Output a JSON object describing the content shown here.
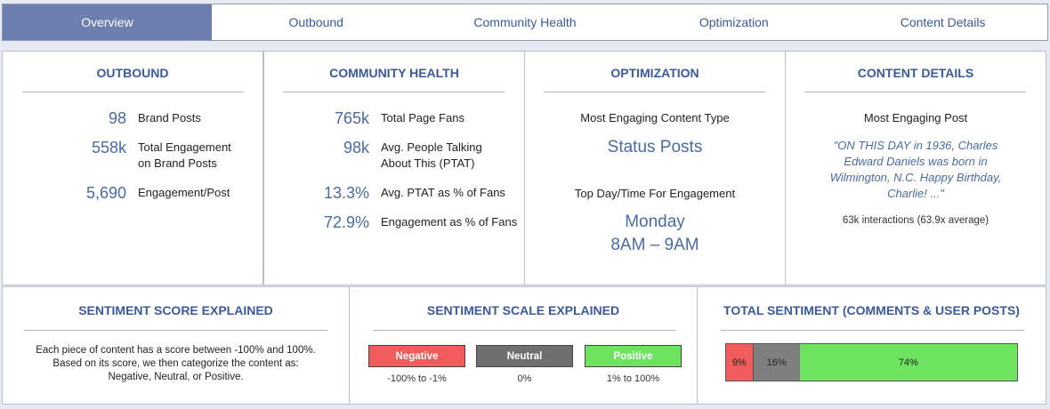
{
  "tabs": [
    "Overview",
    "Outbound",
    "Community Health",
    "Optimization",
    "Content Details"
  ],
  "active_tab": 0,
  "outbound": {
    "heading": "OUTBOUND",
    "stats": [
      {
        "value": "98",
        "label": "Brand Posts"
      },
      {
        "value": "558k",
        "label": "Total Engagement\non Brand Posts"
      },
      {
        "value": "5,690",
        "label": "Engagement/Post"
      }
    ]
  },
  "community": {
    "heading": "COMMUNITY HEALTH",
    "stats": [
      {
        "value": "765k",
        "label": "Total Page Fans"
      },
      {
        "value": "98k",
        "label": "Avg. People Talking\nAbout This (PTAT)"
      },
      {
        "value": "13.3%",
        "label": "Avg. PTAT as % of Fans"
      },
      {
        "value": "72.9%",
        "label": "Engagement as % of Fans"
      }
    ]
  },
  "optimization": {
    "heading": "OPTIMIZATION",
    "content_type_label": "Most Engaging Content Type",
    "content_type_value": "Status Posts",
    "daytime_label": "Top Day/Time For Engagement",
    "day_value": "Monday",
    "time_value": "8AM – 9AM"
  },
  "content_details": {
    "heading": "CONTENT DETAILS",
    "post_label": "Most Engaging Post",
    "post_quote": "\"ON THIS DAY in 1936, Charles Edward Daniels was born in Wilmington, N.C. Happy Birthday, Charlie! ...\"",
    "interactions": "63k interactions (63.9x average)"
  },
  "sentiment_score": {
    "heading": "SENTIMENT SCORE EXPLAINED",
    "text": "Each piece of content has a score between -100% and 100%.\nBased on its score, we then categorize the content as:\nNegative, Neutral, or Positive."
  },
  "sentiment_scale": {
    "heading": "SENTIMENT SCALE EXPLAINED",
    "items": [
      {
        "label": "Negative",
        "range": "-100% to -1%",
        "color": "#f25c5c"
      },
      {
        "label": "Neutral",
        "range": "0%",
        "color": "#6f6f6f"
      },
      {
        "label": "Positive",
        "range": "1% to 100%",
        "color": "#6ee35f"
      }
    ]
  },
  "total_sentiment": {
    "heading": "TOTAL SENTIMENT (COMMENTS & USER POSTS)",
    "segments": [
      {
        "label": "9%",
        "value": 9,
        "color": "#f25c5c"
      },
      {
        "label": "16%",
        "value": 16,
        "color": "#7f7f7f"
      },
      {
        "label": "74%",
        "value": 74,
        "color": "#6ee35f"
      }
    ]
  }
}
